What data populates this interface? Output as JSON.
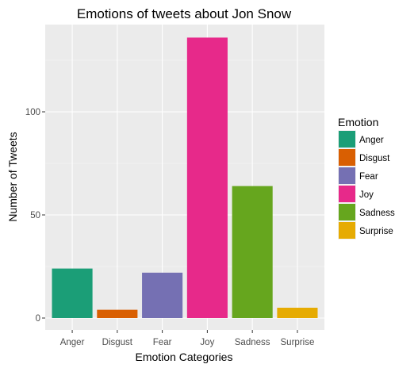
{
  "chart_data": {
    "type": "bar",
    "title": "Emotions of tweets about Jon Snow",
    "xlabel": "Emotion Categories",
    "ylabel": "Number of Tweets",
    "categories": [
      "Anger",
      "Disgust",
      "Fear",
      "Joy",
      "Sadness",
      "Surprise"
    ],
    "values": [
      24,
      4,
      22,
      136,
      64,
      5
    ],
    "colors": [
      "#1b9e77",
      "#d95f02",
      "#7570b3",
      "#e7298a",
      "#66a61e",
      "#e6ab02"
    ],
    "ylim": [
      0,
      142
    ],
    "yticks": [
      0,
      50,
      100
    ],
    "grid": true,
    "legend": {
      "title": "Emotion",
      "position": "right",
      "entries": [
        "Anger",
        "Disgust",
        "Fear",
        "Joy",
        "Sadness",
        "Surprise"
      ]
    }
  }
}
